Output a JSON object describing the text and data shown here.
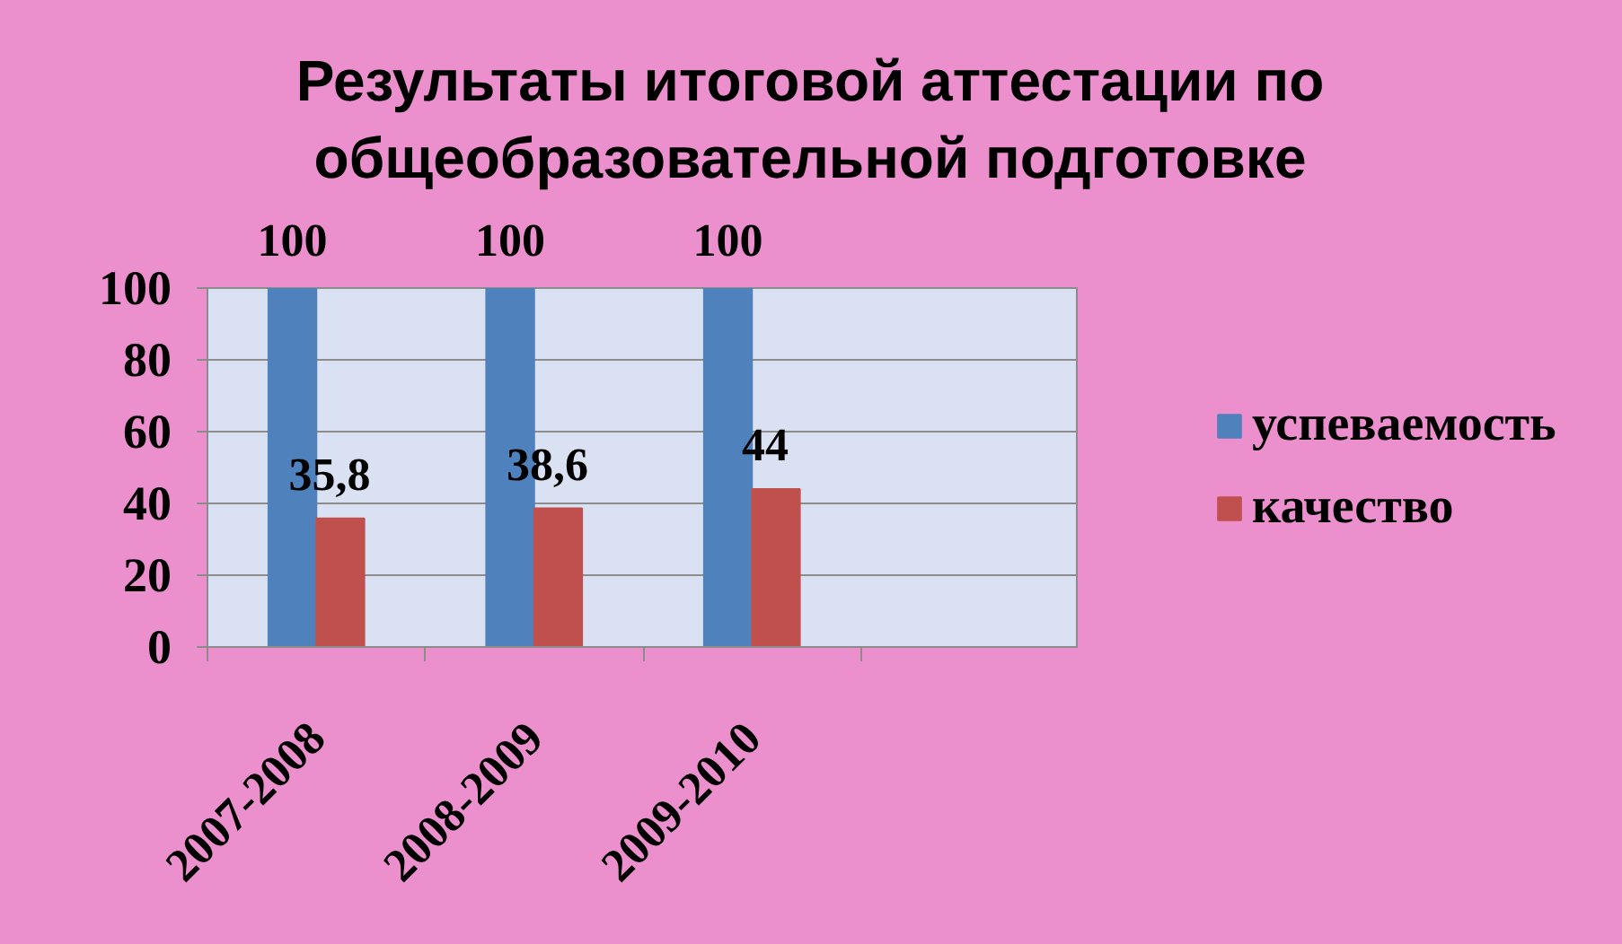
{
  "chart_data": {
    "type": "bar",
    "title": "Результаты итоговой аттестации по общеобразовательной подготовке",
    "categories": [
      "2007-2008",
      "2008-2009",
      "2009-2010",
      null
    ],
    "series": [
      {
        "name": "успеваемость",
        "color": "#4f81bd",
        "values": [
          100,
          100,
          100,
          null
        ],
        "value_labels": [
          "100",
          "100",
          "100",
          null
        ]
      },
      {
        "name": "качество",
        "color": "#c0504d",
        "values": [
          35.8,
          38.6,
          44,
          null
        ],
        "value_labels": [
          "35,8",
          "38,6",
          "44",
          null
        ]
      }
    ],
    "ylim": [
      0,
      100
    ],
    "yticks": [
      0,
      20,
      40,
      60,
      80,
      100
    ],
    "grid": "y",
    "legend": "right"
  }
}
